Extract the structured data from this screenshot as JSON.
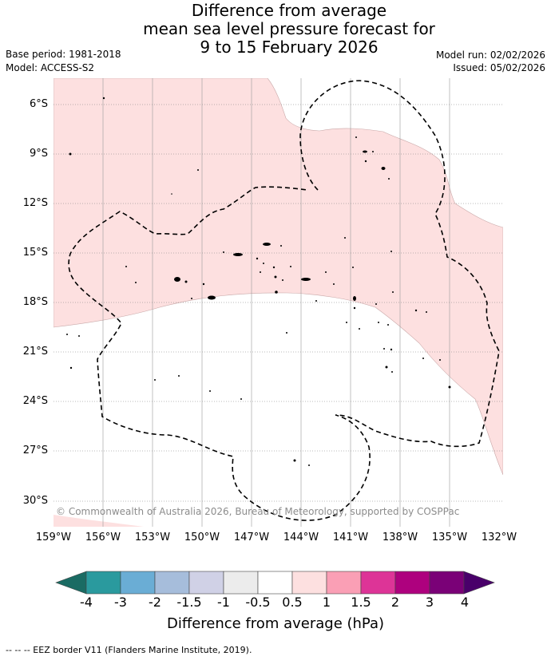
{
  "title": {
    "line1": "Difference from average",
    "line2": "mean sea level pressure forecast for",
    "line3": "9 to 15 February 2026"
  },
  "meta": {
    "base_period": "Base period: 1981-2018",
    "model": "Model: ACCESS-S2",
    "model_run": "Model run: 02/02/2026",
    "issued": "Issued: 05/02/2026"
  },
  "map": {
    "lat_labels": [
      "6°S",
      "9°S",
      "12°S",
      "15°S",
      "18°S",
      "21°S",
      "24°S",
      "27°S",
      "30°S"
    ],
    "lon_labels": [
      "159°W",
      "156°W",
      "153°W",
      "150°W",
      "147°W",
      "144°W",
      "141°W",
      "138°W",
      "135°W",
      "132°W"
    ],
    "positive_anomaly_color": "#fde0e0",
    "eez_border_style": "dashed",
    "copyright": "© Commonwealth of Australia 2026, Bureau of Meteorology, supported by COSPPac"
  },
  "colorbar": {
    "title": "Difference from average (hPa)",
    "tick_labels": [
      "-4",
      "-3",
      "-2",
      "-1.5",
      "-1",
      "-0.5",
      "0.5",
      "1",
      "1.5",
      "2",
      "3",
      "4"
    ],
    "colors": [
      "#1a6b63",
      "#2a9a9e",
      "#6aadd5",
      "#a6bddb",
      "#d0d1e6",
      "#ececec",
      "#ffffff",
      "#fde0e0",
      "#fa9fb5",
      "#dd3497",
      "#ae017e",
      "#7a0177",
      "#49006a"
    ]
  },
  "footnote": "--  --  -- EEZ border V11 (Flanders Marine Institute, 2019)."
}
